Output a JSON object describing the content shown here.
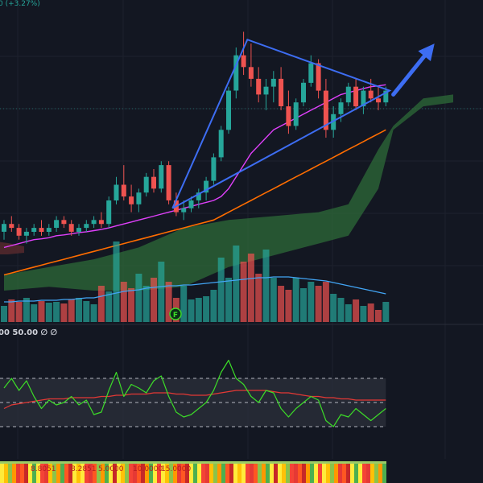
{
  "header": {
    "change_text": "0 (+3.27%)"
  },
  "rsi_header": {
    "text": "00 50.00 ∅ ∅"
  },
  "strip_labels": [
    "8.8051",
    "8.2851",
    "5.0000",
    "10.0000",
    "15.0000"
  ],
  "volume_marker": "F",
  "colors": {
    "background": "#131722",
    "up": "#26a69a",
    "down": "#ef5350",
    "ma_fast": "#e040fb",
    "ma_slow": "#ff6d00",
    "cloud": "#2e6b38",
    "trend": "#3d6df2",
    "volume_ma": "#42a5f5",
    "rsi": "#3cdc28",
    "rsi_ma": "#e53935"
  },
  "chart_data": {
    "type": "candlestick",
    "x_count": 52,
    "ylim": [
      90,
      168
    ],
    "candles": [
      [
        113,
        116,
        111,
        115
      ],
      [
        115,
        117,
        113,
        114
      ],
      [
        114,
        115,
        111,
        112
      ],
      [
        112,
        114,
        110,
        113
      ],
      [
        113,
        115,
        112,
        114
      ],
      [
        114,
        116,
        112,
        113
      ],
      [
        113,
        115,
        112,
        114
      ],
      [
        114,
        117,
        113,
        116
      ],
      [
        116,
        117,
        114,
        115
      ],
      [
        115,
        116,
        112,
        113
      ],
      [
        113,
        115,
        112,
        114
      ],
      [
        114,
        116,
        113,
        115
      ],
      [
        115,
        117,
        114,
        116
      ],
      [
        116,
        118,
        114,
        115
      ],
      [
        115,
        122,
        114,
        121
      ],
      [
        121,
        127,
        120,
        125
      ],
      [
        125,
        130,
        121,
        122
      ],
      [
        122,
        125,
        118,
        120
      ],
      [
        120,
        124,
        118,
        123
      ],
      [
        123,
        128,
        122,
        127
      ],
      [
        127,
        129,
        123,
        124
      ],
      [
        124,
        131,
        123,
        130
      ],
      [
        130,
        131,
        120,
        121
      ],
      [
        121,
        123,
        117,
        118
      ],
      [
        118,
        121,
        116,
        119
      ],
      [
        119,
        122,
        118,
        121
      ],
      [
        121,
        124,
        119,
        123
      ],
      [
        123,
        127,
        121,
        126
      ],
      [
        126,
        133,
        125,
        132
      ],
      [
        132,
        140,
        131,
        139
      ],
      [
        139,
        150,
        138,
        149
      ],
      [
        149,
        160,
        147,
        158
      ],
      [
        158,
        164,
        153,
        155
      ],
      [
        155,
        161,
        150,
        152
      ],
      [
        152,
        155,
        146,
        148
      ],
      [
        148,
        152,
        144,
        150
      ],
      [
        150,
        154,
        146,
        152
      ],
      [
        152,
        155,
        144,
        145
      ],
      [
        145,
        149,
        138,
        140
      ],
      [
        140,
        147,
        139,
        146
      ],
      [
        146,
        152,
        145,
        151
      ],
      [
        151,
        158,
        150,
        156
      ],
      [
        156,
        157,
        147,
        149
      ],
      [
        149,
        152,
        137,
        139
      ],
      [
        139,
        145,
        137,
        143
      ],
      [
        143,
        147,
        141,
        146
      ],
      [
        146,
        151,
        145,
        150
      ],
      [
        150,
        152,
        144,
        145
      ],
      [
        145,
        150,
        143,
        149
      ],
      [
        149,
        152,
        146,
        147
      ],
      [
        147,
        150,
        144,
        146
      ],
      [
        146,
        150,
        145,
        149
      ]
    ],
    "ma_fast": [
      109,
      109.5,
      110,
      110.5,
      111,
      111.2,
      111.5,
      112,
      112.2,
      112.5,
      112.8,
      113,
      113.3,
      113.6,
      114,
      114.5,
      115,
      115.5,
      116,
      116.5,
      117,
      117.5,
      118,
      118.5,
      119,
      119.5,
      120,
      120.5,
      121,
      122,
      124,
      127,
      130,
      133,
      135,
      137,
      139,
      140,
      141,
      142,
      143,
      144,
      145,
      146,
      147,
      148,
      148.5,
      149,
      149.5,
      150,
      150.2,
      150.5
    ],
    "ma_slow": [
      102,
      102.5,
      103,
      103.5,
      104,
      104.5,
      105,
      105.5,
      106,
      106.5,
      107,
      107.5,
      108,
      108.5,
      109,
      109.5,
      110,
      110.5,
      111,
      111.5,
      112,
      112.5,
      113,
      113.5,
      114,
      114.5,
      115,
      115.5,
      116,
      117,
      118,
      119,
      120,
      121,
      122,
      123,
      124,
      125,
      126,
      127,
      128,
      129,
      130,
      131,
      132,
      133,
      134,
      135,
      136,
      137,
      138,
      139
    ],
    "cloud_x": [
      0,
      6,
      12,
      18,
      24,
      30,
      36,
      42,
      46,
      50,
      52,
      56,
      60
    ],
    "cloud_top": [
      102,
      104,
      106,
      109,
      114,
      116,
      117,
      118,
      120,
      134,
      140,
      147,
      148
    ],
    "cloud_bottom": [
      98,
      99,
      98,
      98,
      99,
      104,
      107,
      110,
      112,
      124,
      139,
      145,
      146
    ],
    "triangle": [
      [
        22.5,
        119
      ],
      [
        32.5,
        162
      ],
      [
        51.5,
        149
      ],
      [
        22.5,
        119
      ]
    ],
    "arrow": [
      [
        52,
        148
      ],
      [
        57.5,
        161
      ]
    ],
    "volume": {
      "ylim": [
        0,
        100
      ],
      "values": [
        20,
        28,
        25,
        30,
        22,
        26,
        24,
        25,
        23,
        28,
        30,
        26,
        22,
        45,
        38,
        100,
        50,
        42,
        60,
        45,
        55,
        75,
        50,
        30,
        45,
        28,
        30,
        32,
        40,
        80,
        55,
        95,
        75,
        85,
        60,
        90,
        55,
        45,
        40,
        55,
        42,
        50,
        45,
        50,
        35,
        30,
        22,
        28,
        20,
        23,
        15,
        25
      ],
      "ma": [
        25,
        25,
        26,
        26,
        26,
        27,
        27,
        27,
        28,
        28,
        29,
        30,
        30,
        32,
        34,
        36,
        38,
        39,
        40,
        42,
        43,
        44,
        45,
        45,
        46,
        46,
        47,
        48,
        49,
        50,
        51,
        52,
        53,
        54,
        55,
        55,
        56,
        56,
        56,
        55,
        54,
        53,
        52,
        51,
        49,
        47,
        45,
        43,
        41,
        39,
        37,
        35
      ]
    },
    "rsi": {
      "ylim": [
        0,
        100
      ],
      "values": [
        62,
        70,
        60,
        68,
        55,
        45,
        52,
        48,
        50,
        55,
        48,
        52,
        40,
        42,
        60,
        75,
        55,
        65,
        62,
        58,
        68,
        72,
        55,
        42,
        38,
        40,
        45,
        50,
        60,
        75,
        85,
        70,
        65,
        55,
        50,
        60,
        58,
        45,
        38,
        45,
        50,
        55,
        52,
        35,
        30,
        40,
        38,
        45,
        40,
        35,
        40,
        45
      ],
      "ma": [
        45,
        48,
        49,
        50,
        51,
        52,
        53,
        53,
        53,
        54,
        54,
        54,
        54,
        55,
        55,
        56,
        56,
        57,
        57,
        57,
        58,
        58,
        58,
        57,
        57,
        56,
        56,
        56,
        57,
        58,
        59,
        60,
        60,
        60,
        60,
        60,
        59,
        58,
        58,
        57,
        56,
        55,
        55,
        54,
        54,
        53,
        53,
        52,
        52,
        52,
        52,
        52
      ],
      "upper": 70,
      "lower": 30
    }
  }
}
